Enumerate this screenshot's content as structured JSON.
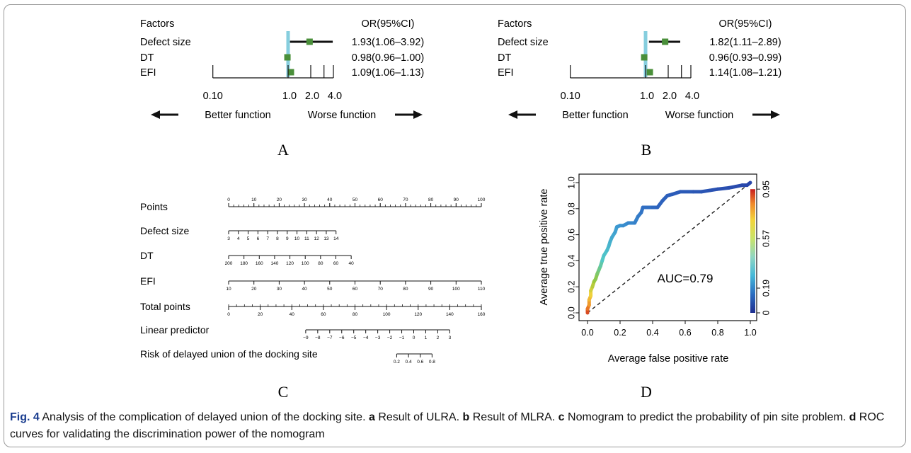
{
  "figure": {
    "caption": {
      "fig_label": "Fig. 4",
      "title": "Analysis of the complication of delayed union of the docking site.",
      "parts": [
        {
          "label": "a",
          "text": "Result of ULRA."
        },
        {
          "label": "b",
          "text": "Result of MLRA."
        },
        {
          "label": "c",
          "text": "Nomogram to predict the probability of pin site problem."
        },
        {
          "label": "d",
          "text": "ROC curves for validating the discrimination power of the nomogram"
        }
      ]
    }
  },
  "chart_data": [
    {
      "type": "forest",
      "panel": "A",
      "factors_header": "Factors",
      "or_header": "OR(95%CI)",
      "rows": [
        {
          "factor": "Defect size",
          "or": 1.93,
          "lo": 1.06,
          "hi": 3.92,
          "label": "1.93(1.06–3.92)"
        },
        {
          "factor": "DT",
          "or": 0.98,
          "lo": 0.96,
          "hi": 1.0,
          "label": "0.98(0.96–1.00)"
        },
        {
          "factor": "EFI",
          "or": 1.09,
          "lo": 1.06,
          "hi": 1.13,
          "label": "1.09(1.06–1.13)"
        }
      ],
      "x_scale": "log",
      "x_ticks": [
        0.1,
        1.0,
        2.0,
        4.0
      ],
      "x_tick_labels": [
        "0.10",
        "1.0",
        "2.0",
        "4.0"
      ],
      "x_minor_ticks": [
        3.0
      ],
      "left_label": "Better function",
      "right_label": "Worse function"
    },
    {
      "type": "forest",
      "panel": "B",
      "factors_header": "Factors",
      "or_header": "OR(95%CI)",
      "rows": [
        {
          "factor": "Defect size",
          "or": 1.82,
          "lo": 1.11,
          "hi": 2.89,
          "label": "1.82(1.11–2.89)"
        },
        {
          "factor": "DT",
          "or": 0.96,
          "lo": 0.93,
          "hi": 0.99,
          "label": "0.96(0.93–0.99)"
        },
        {
          "factor": "EFI",
          "or": 1.14,
          "lo": 1.08,
          "hi": 1.21,
          "label": "1.14(1.08–1.21)"
        }
      ],
      "x_scale": "log",
      "x_ticks": [
        0.1,
        1.0,
        2.0,
        4.0
      ],
      "x_tick_labels": [
        "0.10",
        "1.0",
        "2.0",
        "4.0"
      ],
      "x_minor_ticks": [
        3.0
      ],
      "left_label": "Better function",
      "right_label": "Worse function"
    },
    {
      "type": "nomogram",
      "panel": "C",
      "scales": [
        {
          "name": "Points",
          "points_start": 0,
          "points_end": 100,
          "labels": [
            "0",
            "10",
            "20",
            "30",
            "40",
            "50",
            "60",
            "70",
            "80",
            "90",
            "100"
          ],
          "minor": 50
        },
        {
          "name": "Defect size",
          "points_start": 0,
          "points_end": 42.5,
          "labels": [
            "3",
            "4",
            "5",
            "6",
            "7",
            "8",
            "9",
            "10",
            "11",
            "12",
            "13",
            "14"
          ]
        },
        {
          "name": "DT",
          "points_start": 0,
          "points_end": 48.5,
          "labels": [
            "200",
            "180",
            "160",
            "140",
            "120",
            "100",
            "80",
            "60",
            "40"
          ]
        },
        {
          "name": "EFI",
          "points_start": 0,
          "points_end": 100,
          "labels": [
            "10",
            "20",
            "30",
            "40",
            "50",
            "60",
            "70",
            "80",
            "90",
            "100",
            "110"
          ]
        },
        {
          "name": "Total points",
          "points_start": 0,
          "points_end": 100,
          "labels": [
            "0",
            "20",
            "40",
            "60",
            "80",
            "100",
            "120",
            "140",
            "160"
          ],
          "minor": 32
        },
        {
          "name": "Linear predictor",
          "points_start": 30.5,
          "points_end": 87.5,
          "labels": [
            "−9",
            "−8",
            "−7",
            "−6",
            "−5",
            "−4",
            "−3",
            "−2",
            "−1",
            "0",
            "1",
            "2",
            "3"
          ]
        },
        {
          "name": "Risk of delayed union of the docking site",
          "points_start": 66.5,
          "points_end": 80.5,
          "labels": [
            "0.2",
            "0.4",
            "0.6",
            "0.8"
          ]
        }
      ]
    },
    {
      "type": "line",
      "panel": "D",
      "xlabel": "Average false positive rate",
      "ylabel": "Average true positive rate",
      "xlim": [
        0,
        1
      ],
      "ylim": [
        0,
        1
      ],
      "x_ticks": [
        "0.0",
        "0.2",
        "0.4",
        "0.6",
        "0.8",
        "1.0"
      ],
      "y_ticks": [
        "0.0",
        "0.2",
        "0.4",
        "0.6",
        "0.8",
        "1.0"
      ],
      "annotation": "AUC=0.79",
      "colorbar_ticks": [
        "0",
        "0.19",
        "0.57",
        "0.95"
      ],
      "colorbar_values": [
        0,
        0.19,
        0.57,
        0.95
      ],
      "diagonal": true,
      "series": [
        {
          "values": [
            [
              0.0,
              0.0
            ],
            [
              0.0,
              0.03
            ],
            [
              0.01,
              0.06
            ],
            [
              0.01,
              0.1
            ],
            [
              0.02,
              0.13
            ],
            [
              0.02,
              0.17
            ],
            [
              0.03,
              0.2
            ],
            [
              0.04,
              0.24
            ],
            [
              0.05,
              0.26
            ],
            [
              0.06,
              0.3
            ],
            [
              0.07,
              0.33
            ],
            [
              0.08,
              0.36
            ],
            [
              0.09,
              0.4
            ],
            [
              0.1,
              0.44
            ],
            [
              0.12,
              0.48
            ],
            [
              0.13,
              0.51
            ],
            [
              0.14,
              0.55
            ],
            [
              0.15,
              0.58
            ],
            [
              0.17,
              0.62
            ],
            [
              0.18,
              0.66
            ],
            [
              0.2,
              0.67
            ],
            [
              0.22,
              0.67
            ],
            [
              0.25,
              0.69
            ],
            [
              0.29,
              0.69
            ],
            [
              0.31,
              0.74
            ],
            [
              0.33,
              0.77
            ],
            [
              0.34,
              0.81
            ],
            [
              0.4,
              0.81
            ],
            [
              0.43,
              0.81
            ],
            [
              0.46,
              0.86
            ],
            [
              0.49,
              0.9
            ],
            [
              0.52,
              0.91
            ],
            [
              0.57,
              0.93
            ],
            [
              0.65,
              0.93
            ],
            [
              0.7,
              0.93
            ],
            [
              0.75,
              0.94
            ],
            [
              0.8,
              0.95
            ],
            [
              0.87,
              0.96
            ],
            [
              0.91,
              0.97
            ],
            [
              0.95,
              0.98
            ],
            [
              0.98,
              0.98
            ],
            [
              1.0,
              1.0
            ]
          ]
        }
      ]
    }
  ]
}
